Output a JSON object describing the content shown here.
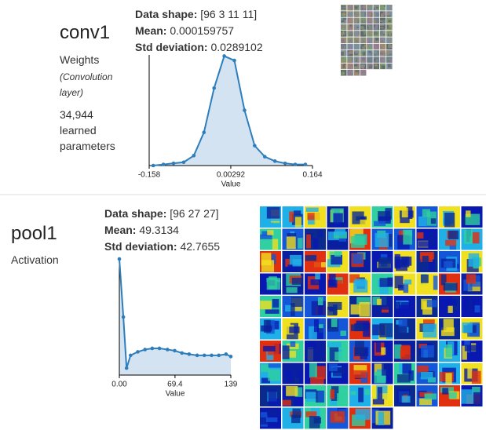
{
  "panels": [
    {
      "name": "conv1",
      "kind": "Weights",
      "detail": "(Convolution layer)",
      "params": "34,944 learned parameters",
      "stats": [
        {
          "label": "Data shape:",
          "value": "[96 3 11 11]"
        },
        {
          "label": "Mean:",
          "value": "0.000159757"
        },
        {
          "label": "Std deviation:",
          "value": "0.0289102"
        }
      ]
    },
    {
      "name": "pool1",
      "kind": "Activation",
      "stats": [
        {
          "label": "Data shape:",
          "value": "[96 27 27]"
        },
        {
          "label": "Mean:",
          "value": "49.3134"
        },
        {
          "label": "Std deviation:",
          "value": "42.7655"
        }
      ]
    }
  ],
  "chart_data": [
    {
      "type": "line",
      "xlabel": "Value",
      "color": "#2f7ebc",
      "x": [
        -0.15,
        -0.13,
        -0.11,
        -0.09,
        -0.07,
        -0.05,
        -0.03,
        -0.01,
        0.01,
        0.03,
        0.05,
        0.07,
        0.09,
        0.11,
        0.13,
        0.15
      ],
      "values": [
        0.0,
        0.01,
        0.02,
        0.03,
        0.09,
        0.3,
        0.7,
        0.99,
        0.95,
        0.5,
        0.18,
        0.08,
        0.04,
        0.02,
        0.01,
        0.01
      ],
      "xlim": [
        -0.158,
        0.164
      ],
      "ylim": [
        0,
        1
      ],
      "xticks": [
        -0.158,
        0.00292,
        0.164
      ]
    },
    {
      "type": "line",
      "xlabel": "Value",
      "color": "#2f7ebc",
      "x": [
        0,
        5,
        9,
        14,
        23,
        32,
        41,
        50,
        60,
        69,
        78,
        87,
        97,
        106,
        115,
        124,
        133,
        139
      ],
      "values": [
        1.0,
        0.5,
        0.06,
        0.17,
        0.2,
        0.22,
        0.23,
        0.23,
        0.22,
        0.21,
        0.19,
        0.18,
        0.17,
        0.17,
        0.17,
        0.17,
        0.18,
        0.16
      ],
      "xlim": [
        0,
        139
      ],
      "ylim": [
        0,
        1
      ],
      "xticks": [
        {
          "value": 0,
          "label": "0.00"
        },
        69.4,
        139
      ]
    }
  ]
}
